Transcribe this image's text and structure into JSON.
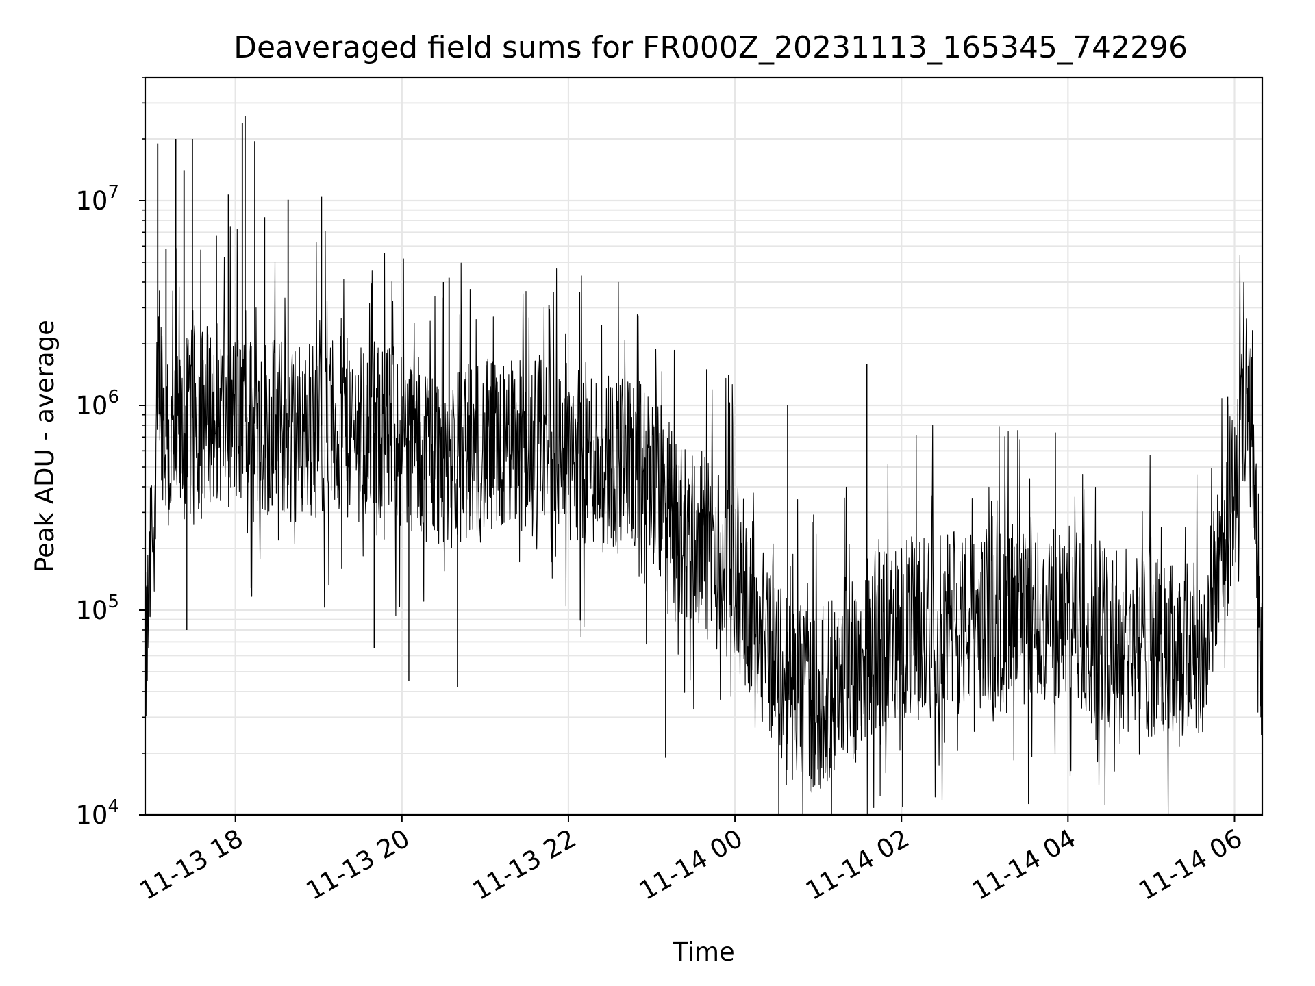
{
  "chart_data": {
    "type": "line",
    "title": "Deaveraged field sums for FR000Z_20231113_165345_742296",
    "xlabel": "Time",
    "ylabel": "Peak ADU - average",
    "yscale": "log",
    "ylim": [
      10000,
      40000000
    ],
    "xlim": [
      "2023-11-13 16:55",
      "2023-11-14 06:20"
    ],
    "grid": true,
    "line_color": "#000000",
    "grid_color": "#e6e6e6",
    "x_ticks": [
      {
        "value": "2023-11-13 18:00",
        "label": "11-13 18"
      },
      {
        "value": "2023-11-13 20:00",
        "label": "11-13 20"
      },
      {
        "value": "2023-11-13 22:00",
        "label": "11-13 22"
      },
      {
        "value": "2023-11-14 00:00",
        "label": "11-14 00"
      },
      {
        "value": "2023-11-14 02:00",
        "label": "11-14 02"
      },
      {
        "value": "2023-11-14 04:00",
        "label": "11-14 04"
      },
      {
        "value": "2023-11-14 06:00",
        "label": "11-14 06"
      }
    ],
    "y_ticks": [
      {
        "value": 10000,
        "base": "10",
        "exp": "4"
      },
      {
        "value": 100000,
        "base": "10",
        "exp": "5"
      },
      {
        "value": 1000000,
        "base": "10",
        "exp": "6"
      },
      {
        "value": 10000000,
        "base": "10",
        "exp": "7"
      }
    ],
    "series": [
      {
        "x": [
          "2023-11-13 16:55",
          "2023-11-13 16:58",
          "2023-11-13 17:02",
          "2023-11-13 17:05",
          "2023-11-13 17:08",
          "2023-11-13 17:12",
          "2023-11-13 17:20",
          "2023-11-13 17:30",
          "2023-11-13 17:45",
          "2023-11-13 18:00",
          "2023-11-13 18:20",
          "2023-11-13 18:40",
          "2023-11-13 19:00",
          "2023-11-13 19:30",
          "2023-11-13 20:00",
          "2023-11-13 20:30",
          "2023-11-13 21:00",
          "2023-11-13 21:30",
          "2023-11-13 22:00",
          "2023-11-13 22:30",
          "2023-11-13 23:00",
          "2023-11-13 23:20",
          "2023-11-13 23:40",
          "2023-11-14 00:00",
          "2023-11-14 00:20",
          "2023-11-14 00:40",
          "2023-11-14 01:00",
          "2023-11-14 01:20",
          "2023-11-14 01:40",
          "2023-11-14 02:00",
          "2023-11-14 02:30",
          "2023-11-14 03:00",
          "2023-11-14 03:30",
          "2023-11-14 04:00",
          "2023-11-14 04:30",
          "2023-11-14 05:00",
          "2023-11-14 05:20",
          "2023-11-14 05:40",
          "2023-11-14 05:50",
          "2023-11-14 06:00",
          "2023-11-14 06:08",
          "2023-11-14 06:13",
          "2023-11-14 06:16",
          "2023-11-14 06:20"
        ],
        "y": [
          50000,
          120000,
          400000,
          1800000,
          900000,
          550000,
          650000,
          900000,
          950000,
          850000,
          800000,
          750000,
          800000,
          750000,
          700000,
          550000,
          600000,
          650000,
          600000,
          550000,
          450000,
          250000,
          200000,
          150000,
          80000,
          40000,
          35000,
          50000,
          70000,
          80000,
          85000,
          90000,
          85000,
          95000,
          75000,
          65000,
          60000,
          70000,
          200000,
          350000,
          1000000,
          800000,
          200000,
          50000
        ]
      }
    ],
    "spikes": {
      "x": [
        "2023-11-13 17:04",
        "2023-11-13 17:10",
        "2023-11-13 17:17",
        "2023-11-13 17:23",
        "2023-11-13 17:29",
        "2023-11-13 17:55",
        "2023-11-13 18:05",
        "2023-11-13 18:07",
        "2023-11-13 18:14",
        "2023-11-13 18:21",
        "2023-11-13 18:38",
        "2023-11-13 19:02",
        "2023-11-13 20:30",
        "2023-11-13 20:34",
        "2023-11-13 21:46",
        "2023-11-14 00:38",
        "2023-11-14 01:35",
        "2023-11-14 05:55"
      ],
      "y": [
        19000000,
        5800000,
        20000000,
        14000000,
        20000000,
        10700000,
        24000000,
        26000000,
        19500000,
        8300000,
        10100000,
        10500000,
        4000000,
        4200000,
        3100000,
        1000000,
        1600000,
        1100000
      ]
    },
    "dips": {
      "x": [
        "2023-11-13 17:25",
        "2023-11-13 19:40",
        "2023-11-13 20:05",
        "2023-11-13 20:40",
        "2023-11-13 23:10",
        "2023-11-14 00:37",
        "2023-11-14 00:55",
        "2023-11-14 01:05",
        "2023-11-14 01:27",
        "2023-11-14 01:45",
        "2023-11-14 04:17",
        "2023-11-14 06:19"
      ],
      "y": [
        80000,
        65000,
        45000,
        42000,
        19000,
        14000,
        15000,
        16000,
        18000,
        22000,
        28000,
        30000
      ]
    }
  }
}
